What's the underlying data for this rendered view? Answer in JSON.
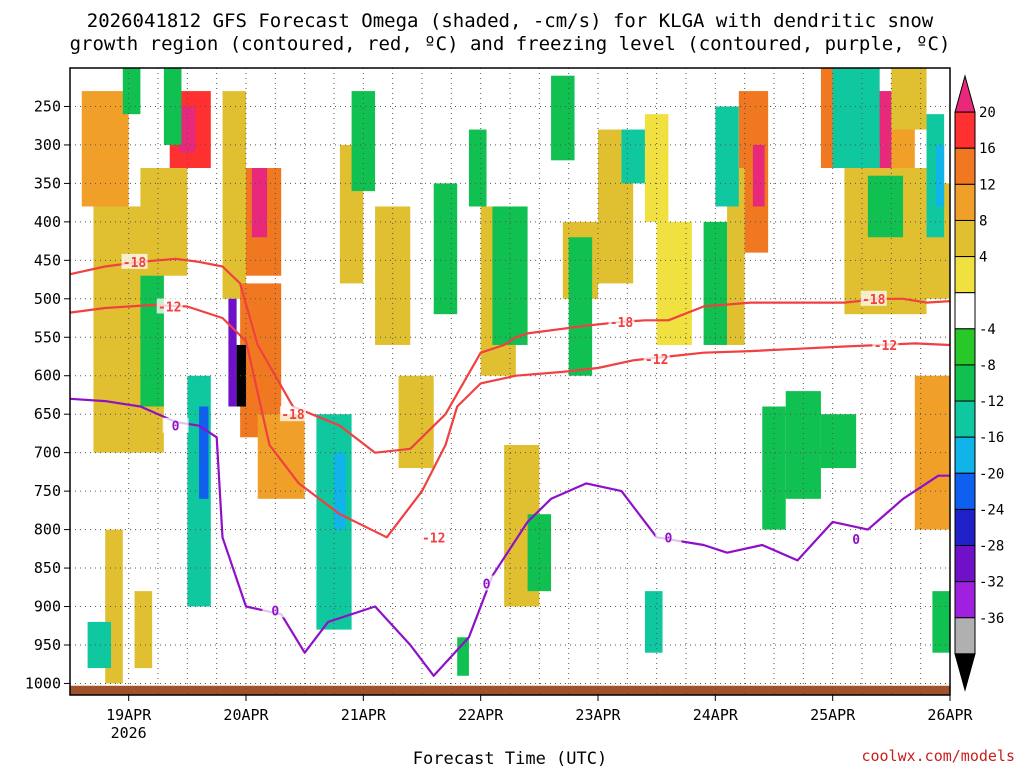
{
  "chart_data": {
    "type": "heatmap",
    "title_line1": "2026041812 GFS Forecast Omega (shaded, -cm/s) for KLGA with dendritic snow",
    "title_line2": "growth region (contoured, red, ºC) and freezing level (contoured, purple, ºC)",
    "xlabel": "Forecast Time (UTC)",
    "watermark": "coolwx.com/models",
    "x_ticks": [
      {
        "t": 0.5,
        "label": "19APR",
        "sub": "2026"
      },
      {
        "t": 1.5,
        "label": "20APR"
      },
      {
        "t": 2.5,
        "label": "21APR"
      },
      {
        "t": 3.5,
        "label": "22APR"
      },
      {
        "t": 4.5,
        "label": "23APR"
      },
      {
        "t": 5.5,
        "label": "24APR"
      },
      {
        "t": 6.5,
        "label": "25APR"
      },
      {
        "t": 7.5,
        "label": "26APR"
      }
    ],
    "x_range_days": [
      0,
      7.5
    ],
    "y_ticks": [
      250,
      300,
      350,
      400,
      450,
      500,
      550,
      600,
      650,
      700,
      750,
      800,
      850,
      900,
      950,
      1000
    ],
    "y_range_hpa": [
      200,
      1015
    ],
    "y_units": "hPa",
    "colorbar": {
      "labels": [
        "20",
        "16",
        "12",
        "8",
        "4",
        "-4",
        "-8",
        "-12",
        "-16",
        "-20",
        "-24",
        "-28",
        "-32",
        "-36"
      ],
      "colors": [
        "#e8287a",
        "#ff3030",
        "#f07820",
        "#f0a028",
        "#e0c030",
        "#f0e040",
        "#ffffff",
        "#28c828",
        "#10c050",
        "#10c8a0",
        "#10b4e8",
        "#1060f0",
        "#2020c8",
        "#7010c8",
        "#a020e0",
        "#b0b0b0",
        "#000000"
      ]
    },
    "omega_cells": [
      [
        0.1,
        0.5,
        230,
        380,
        8
      ],
      [
        0.2,
        0.8,
        380,
        700,
        6
      ],
      [
        0.85,
        1.2,
        230,
        330,
        16
      ],
      [
        0.93,
        1.07,
        250,
        310,
        20
      ],
      [
        0.6,
        1.0,
        330,
        470,
        6
      ],
      [
        1.3,
        1.5,
        230,
        500,
        6
      ],
      [
        1.5,
        1.8,
        330,
        470,
        14
      ],
      [
        1.55,
        1.68,
        330,
        420,
        20
      ],
      [
        1.45,
        1.8,
        480,
        680,
        12
      ],
      [
        1.6,
        2.0,
        650,
        760,
        8
      ],
      [
        2.6,
        2.9,
        380,
        560,
        6
      ],
      [
        2.8,
        3.1,
        600,
        720,
        6
      ],
      [
        3.5,
        3.8,
        380,
        600,
        6
      ],
      [
        3.7,
        4.0,
        690,
        900,
        6
      ],
      [
        4.2,
        4.5,
        400,
        500,
        6
      ],
      [
        4.5,
        4.8,
        280,
        480,
        6
      ],
      [
        5.0,
        5.3,
        400,
        560,
        4
      ],
      [
        5.7,
        5.95,
        230,
        440,
        12
      ],
      [
        5.82,
        5.92,
        300,
        380,
        20
      ],
      [
        5.6,
        5.75,
        330,
        560,
        6
      ],
      [
        6.4,
        6.9,
        200,
        330,
        12
      ],
      [
        6.95,
        7.2,
        230,
        350,
        10
      ],
      [
        6.85,
        7.0,
        230,
        300,
        20
      ],
      [
        6.9,
        7.0,
        300,
        400,
        20
      ],
      [
        6.6,
        7.3,
        330,
        520,
        6
      ],
      [
        7.0,
        7.3,
        200,
        280,
        6
      ],
      [
        7.2,
        7.5,
        600,
        800,
        8
      ],
      [
        7.3,
        7.5,
        350,
        500,
        6
      ],
      [
        0.3,
        0.45,
        800,
        1000,
        6
      ],
      [
        0.55,
        0.7,
        880,
        980,
        6
      ],
      [
        2.3,
        2.5,
        300,
        480,
        6
      ],
      [
        4.9,
        5.1,
        260,
        400,
        4
      ],
      [
        0.6,
        0.8,
        470,
        640,
        -8
      ],
      [
        0.8,
        0.95,
        200,
        300,
        -10
      ],
      [
        1.0,
        1.2,
        600,
        900,
        -12
      ],
      [
        1.1,
        1.18,
        640,
        760,
        -20
      ],
      [
        1.35,
        1.42,
        500,
        640,
        -28
      ],
      [
        1.42,
        1.5,
        560,
        640,
        -36
      ],
      [
        2.1,
        2.4,
        650,
        930,
        -12
      ],
      [
        2.25,
        2.35,
        700,
        800,
        -16
      ],
      [
        2.4,
        2.6,
        230,
        360,
        -8
      ],
      [
        3.1,
        3.3,
        350,
        520,
        -8
      ],
      [
        3.4,
        3.55,
        280,
        380,
        -10
      ],
      [
        3.6,
        3.9,
        380,
        560,
        -10
      ],
      [
        3.9,
        4.1,
        780,
        880,
        -10
      ],
      [
        4.1,
        4.3,
        210,
        320,
        -8
      ],
      [
        4.25,
        4.45,
        420,
        600,
        -10
      ],
      [
        4.7,
        4.9,
        280,
        350,
        -12
      ],
      [
        5.4,
        5.6,
        400,
        560,
        -8
      ],
      [
        5.5,
        5.7,
        250,
        380,
        -14
      ],
      [
        5.9,
        6.1,
        640,
        800,
        -8
      ],
      [
        6.1,
        6.4,
        620,
        760,
        -10
      ],
      [
        6.4,
        6.7,
        650,
        720,
        -10
      ],
      [
        6.5,
        6.9,
        200,
        330,
        -12
      ],
      [
        6.8,
        7.1,
        340,
        420,
        -10
      ],
      [
        7.3,
        7.45,
        260,
        420,
        -12
      ],
      [
        7.38,
        7.45,
        300,
        380,
        -16
      ],
      [
        7.35,
        7.5,
        880,
        960,
        -10
      ],
      [
        0.15,
        0.35,
        920,
        980,
        -14
      ],
      [
        4.9,
        5.05,
        880,
        960,
        -12
      ],
      [
        3.3,
        3.4,
        940,
        990,
        -8
      ],
      [
        0.45,
        0.6,
        200,
        260,
        -8
      ]
    ],
    "contour_dgz_m18": {
      "label": "-18",
      "days": [
        0,
        0.3,
        0.6,
        0.9,
        1.1,
        1.3,
        1.45,
        1.6,
        1.9,
        2.3,
        2.6,
        2.9,
        3.2,
        3.5,
        3.7,
        3.8,
        3.9,
        4.4,
        4.7,
        4.9,
        5.1,
        5.4,
        5.8,
        6.2,
        6.6,
        6.9,
        7.1,
        7.3,
        7.5
      ],
      "hpa": [
        468,
        458,
        452,
        448,
        452,
        458,
        480,
        560,
        640,
        665,
        700,
        695,
        650,
        570,
        560,
        550,
        545,
        535,
        530,
        528,
        528,
        510,
        505,
        505,
        505,
        500,
        500,
        505,
        503
      ],
      "label_at": [
        [
          0.55,
          452
        ],
        [
          1.9,
          650
        ],
        [
          4.7,
          530
        ],
        [
          6.85,
          500
        ]
      ]
    },
    "contour_dgz_m12": {
      "label": "-12",
      "days": [
        0,
        0.3,
        0.7,
        1.0,
        1.3,
        1.5,
        1.7,
        1.95,
        2.3,
        2.7,
        3.0,
        3.2,
        3.3,
        3.5,
        3.8,
        4.2,
        4.5,
        4.8,
        5.1,
        5.4,
        5.8,
        6.2,
        6.6,
        6.9,
        7.2,
        7.5
      ],
      "hpa": [
        518,
        512,
        508,
        510,
        525,
        555,
        690,
        740,
        780,
        810,
        750,
        690,
        640,
        610,
        600,
        595,
        590,
        580,
        575,
        570,
        568,
        565,
        562,
        560,
        558,
        560
      ],
      "label_at": [
        [
          0.85,
          510
        ],
        [
          3.1,
          810
        ],
        [
          5.0,
          578
        ],
        [
          6.95,
          560
        ]
      ]
    },
    "contour_freezing_0": {
      "label": "0",
      "days": [
        0,
        0.3,
        0.6,
        0.9,
        1.1,
        1.25,
        1.3,
        1.5,
        1.8,
        2.0,
        2.2,
        2.6,
        2.9,
        3.1,
        3.4,
        3.6,
        3.9,
        4.1,
        4.4,
        4.7,
        5.0,
        5.4,
        5.6,
        5.9,
        6.2,
        6.5,
        6.8,
        7.1,
        7.4,
        7.5
      ],
      "hpa": [
        630,
        633,
        640,
        660,
        665,
        680,
        810,
        900,
        910,
        960,
        920,
        900,
        950,
        990,
        940,
        860,
        790,
        760,
        740,
        750,
        810,
        820,
        830,
        820,
        840,
        790,
        800,
        760,
        730,
        730
      ],
      "label_at": [
        [
          0.9,
          665
        ],
        [
          1.75,
          905
        ],
        [
          3.55,
          870
        ],
        [
          5.1,
          810
        ],
        [
          6.7,
          812
        ]
      ]
    },
    "ground_hpa": 1003
  }
}
